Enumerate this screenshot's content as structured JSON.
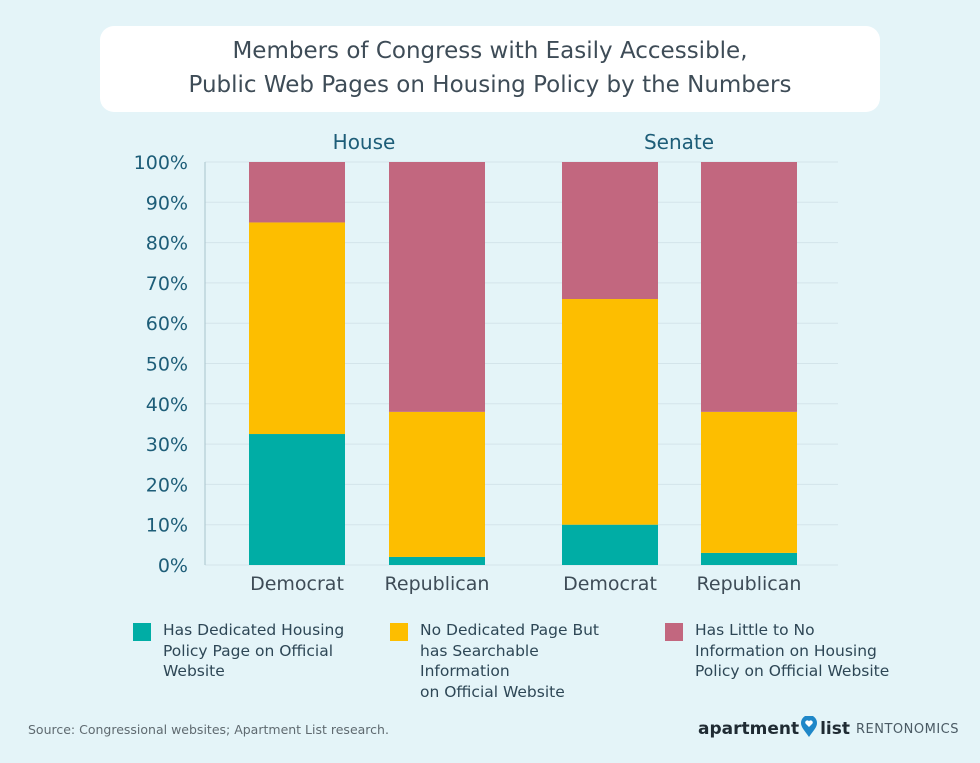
{
  "title": {
    "line1": "Members of Congress with Easily Accessible,",
    "line2": "Public Web Pages on Housing Policy by the Numbers"
  },
  "colors": {
    "background": "#e4f4f8",
    "dedicated": "#00ada5",
    "searchable": "#fdbe00",
    "little": "#c2677f",
    "axis_text": "#1d5d78",
    "grid": "#d3e4ea"
  },
  "chart_data": {
    "type": "bar",
    "stacked": true,
    "groups": [
      "House",
      "Senate"
    ],
    "categories": [
      "Democrat",
      "Republican",
      "Democrat",
      "Republican"
    ],
    "category_groups": [
      "House",
      "House",
      "Senate",
      "Senate"
    ],
    "series": [
      {
        "name": "Has Dedicated Housing Policy Page on Official Website",
        "color_key": "dedicated",
        "values": [
          32.5,
          2,
          10,
          3
        ]
      },
      {
        "name": "No Dedicated Page But has Searchable Information on Official Website",
        "color_key": "searchable",
        "values": [
          52.5,
          36,
          56,
          35
        ]
      },
      {
        "name": "Has Little to No Information on Housing Policy on Official Website",
        "color_key": "little",
        "values": [
          15,
          62,
          34,
          62
        ]
      }
    ],
    "ylim": [
      0,
      100
    ],
    "yticks": [
      "0%",
      "10%",
      "20%",
      "30%",
      "40%",
      "50%",
      "60%",
      "70%",
      "80%",
      "90%",
      "100%"
    ],
    "xlabel": "",
    "ylabel": "",
    "grid": true,
    "legend_position": "bottom"
  },
  "legend": [
    {
      "color_key": "dedicated",
      "lines": [
        "Has Dedicated Housing",
        "Policy Page on Official",
        "Website"
      ]
    },
    {
      "color_key": "searchable",
      "lines": [
        "No Dedicated Page But",
        "has Searchable Information",
        "on Official Website"
      ]
    },
    {
      "color_key": "little",
      "lines": [
        "Has Little to No",
        "Information on Housing",
        "Policy on Official Website"
      ]
    }
  ],
  "source": "Source: Congressional websites; Apartment List research.",
  "brand": {
    "name_part1": "apartment",
    "name_part2": "list",
    "sub": "RENTONOMICS",
    "pin_icon": "location-pin-heart-icon"
  }
}
